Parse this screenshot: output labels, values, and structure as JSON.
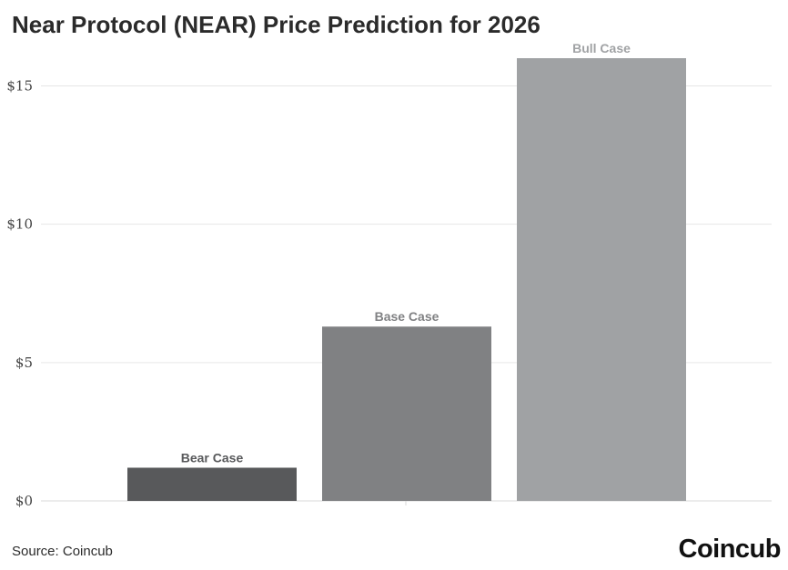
{
  "title": "Near Protocol (NEAR) Price Prediction for 2026",
  "source": "Source: Coincub",
  "brand": "Coincub",
  "chart_data": {
    "type": "bar",
    "title": "Near Protocol (NEAR) Price Prediction for 2026",
    "xlabel": "",
    "ylabel": "",
    "ylim": [
      0,
      16
    ],
    "y_ticks": [
      0,
      5,
      10,
      15
    ],
    "y_tick_labels": [
      "$0",
      "$5",
      "$10",
      "$15"
    ],
    "grid": true,
    "categories": [
      "Bear Case",
      "Base Case",
      "Bull Case"
    ],
    "values": [
      1.2,
      6.3,
      16.0
    ],
    "colors": [
      "#58595b",
      "#808183",
      "#a0a2a4"
    ],
    "label_colors": [
      "#58595b",
      "#808183",
      "#a0a2a4"
    ]
  }
}
